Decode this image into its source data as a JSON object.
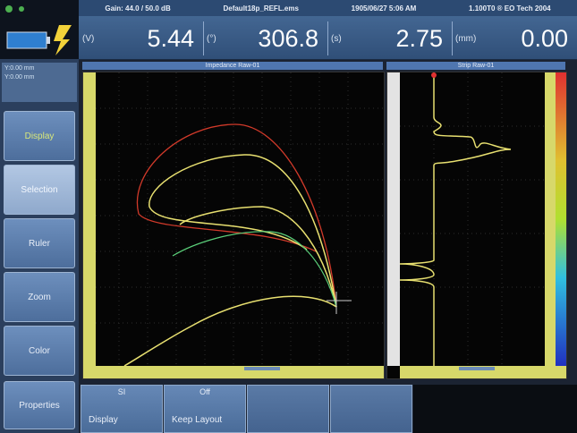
{
  "status_bar": {
    "gain": "Gain: 44.0 / 50.0 dB",
    "file": "Default18p_REFL.ems",
    "datetime": "1905/06/27 5:06 AM",
    "device": "1.100T0 ® EO Tech 2004"
  },
  "readouts": [
    {
      "unit": "(V)",
      "value": "5.44"
    },
    {
      "unit": "(°)",
      "value": "306.8"
    },
    {
      "unit": "(s)",
      "value": "2.75"
    },
    {
      "unit": "(mm)",
      "value": "0.00"
    }
  ],
  "status_box": [
    "",
    "Y:0.00 mm",
    "Y:0.00 mm"
  ],
  "menu": [
    {
      "label": "Display"
    },
    {
      "label": "Selection"
    },
    {
      "label": "Ruler"
    },
    {
      "label": "Zoom"
    },
    {
      "label": "Color"
    },
    {
      "label": "Properties"
    }
  ],
  "plots": {
    "impedance_title": "Impedance Raw-01",
    "strip_title": "Strip Raw-01"
  },
  "function_keys": [
    {
      "value": "SI",
      "label": "Display"
    },
    {
      "value": "Off",
      "label": "Keep Layout"
    },
    {
      "value": "",
      "label": ""
    },
    {
      "value": "",
      "label": ""
    }
  ],
  "colors": {
    "accent": "#d9e87a",
    "trace_red": "#d23a2a",
    "trace_yellow": "#e8e070",
    "trace_green": "#5bd07a"
  }
}
